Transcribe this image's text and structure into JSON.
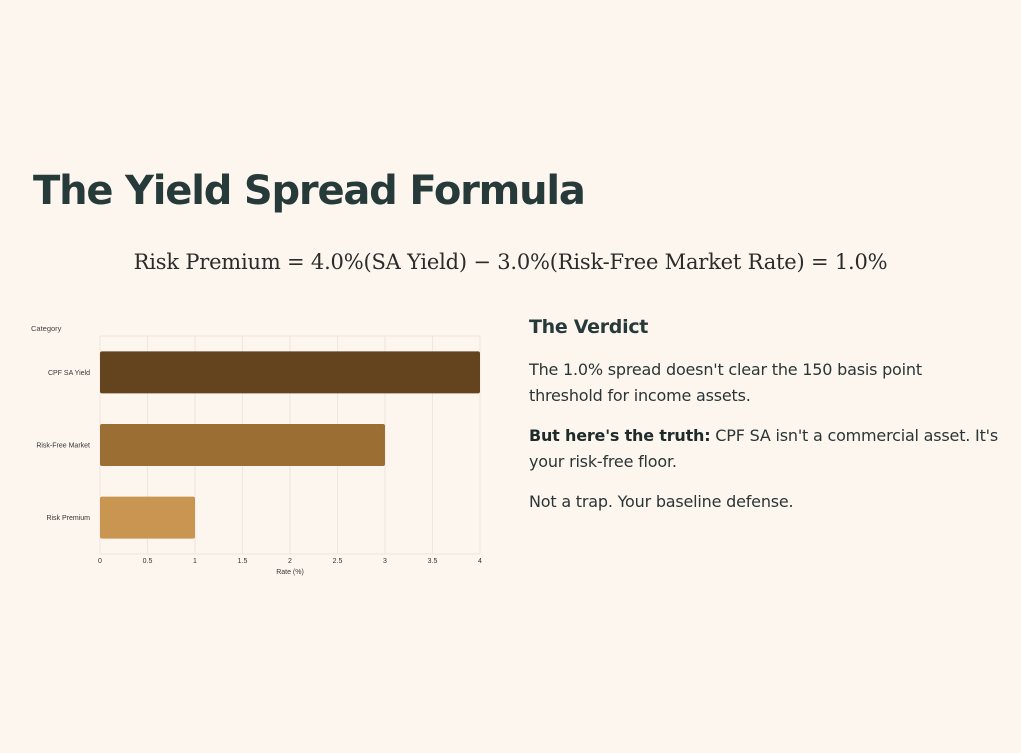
{
  "title": "The Yield Spread Formula",
  "formula": "Risk Premium = 4.0%(SA Yield) − 3.0%(Risk-Free Market Rate) = 1.0%",
  "chart_data": {
    "type": "bar",
    "orientation": "horizontal",
    "ytitle": "Category",
    "xlabel": "Rate (%)",
    "categories": [
      "CPF SA Yield",
      "Risk-Free Market",
      "Risk Premium"
    ],
    "values": [
      4.0,
      3.0,
      1.0
    ],
    "xlim": [
      0,
      4
    ],
    "xticks": [
      "0",
      "0.5",
      "1",
      "1.5",
      "2",
      "2.5",
      "3",
      "3.5",
      "4"
    ],
    "grid": true,
    "colors": [
      "#63441f",
      "#9b6f33",
      "#c99651"
    ]
  },
  "verdict": {
    "heading": "The Verdict",
    "p1": "The 1.0% spread doesn't clear the 150 basis point threshold for income assets.",
    "p2_bold": "But here's the truth:",
    "p2_rest": " CPF SA isn't a commercial asset. It's your risk-free floor.",
    "p3": "Not a trap. Your baseline defense."
  }
}
